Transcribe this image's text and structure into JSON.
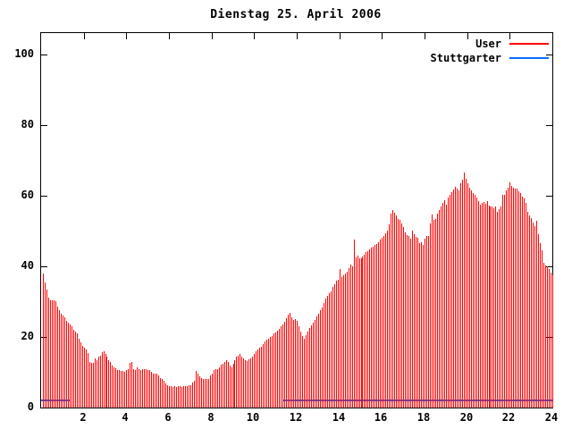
{
  "chart_data": {
    "type": "bar",
    "title": "Dienstag 25. April 2006",
    "xlabel": "",
    "ylabel": "",
    "xlim": [
      0,
      24
    ],
    "ylim": [
      0,
      106
    ],
    "x_ticks": [
      2,
      4,
      6,
      8,
      10,
      12,
      14,
      16,
      18,
      20,
      22,
      24
    ],
    "y_ticks": [
      0,
      20,
      40,
      60,
      80,
      100
    ],
    "grid": false,
    "legend_position": "top-right-inside",
    "background_color": "#ffffff",
    "axis_color": "#000000",
    "series": [
      {
        "name": "User",
        "color": "#ff0000",
        "style": "impulses",
        "interval_minutes": 5,
        "values": [
          38,
          35.5,
          33.5,
          31,
          30.3,
          30.3,
          30.3,
          30,
          28.5,
          27.5,
          26.5,
          26,
          25.5,
          24.5,
          24,
          23.5,
          23,
          22,
          21.5,
          21,
          19.5,
          18.5,
          17.5,
          17,
          16.5,
          15.5,
          13,
          12.6,
          12.6,
          14,
          13.5,
          14.3,
          14.7,
          15.6,
          16,
          15.1,
          14.3,
          13.5,
          13,
          11.8,
          11.5,
          11.1,
          10.7,
          10.7,
          10.3,
          10.3,
          10.1,
          10.5,
          10.9,
          12.6,
          13,
          10.9,
          10.5,
          11.4,
          10.9,
          10.5,
          10.8,
          10.8,
          10.8,
          10.7,
          10.5,
          10.1,
          9.7,
          9.6,
          9.5,
          9,
          8.4,
          8,
          7.6,
          6.8,
          6.2,
          6,
          6,
          5.8,
          6,
          5.8,
          6,
          6,
          5.8,
          6,
          6,
          6,
          6.2,
          6.3,
          7.1,
          7.6,
          10.3,
          9.7,
          8.9,
          8.4,
          8.2,
          8,
          8,
          8.2,
          9,
          9.5,
          10.5,
          10.9,
          11,
          11.5,
          12.2,
          12.5,
          12.8,
          13.5,
          12.8,
          12,
          11.5,
          12.5,
          13.5,
          14.3,
          14.6,
          15.1,
          14.5,
          14,
          13.4,
          13.2,
          13.6,
          14,
          14.5,
          15.3,
          16,
          16.5,
          17,
          17.3,
          18,
          18.7,
          19.3,
          19.6,
          20,
          20.3,
          21,
          21.3,
          21.7,
          22.3,
          23,
          23.6,
          24.4,
          25.2,
          26.2,
          26.9,
          25.5,
          24.8,
          25,
          24.5,
          23,
          21.5,
          20.3,
          19.4,
          20.5,
          21.6,
          22.5,
          23.3,
          24,
          24.8,
          25.8,
          26.5,
          27.5,
          28.3,
          29.5,
          30.8,
          31.7,
          32.5,
          33,
          34.2,
          35,
          35.8,
          36.3,
          39.3,
          37,
          37.5,
          38,
          38.5,
          39.5,
          40.5,
          40,
          47.6,
          42.5,
          42.9,
          42.3,
          42.2,
          42.8,
          43.3,
          43.9,
          44.3,
          44.7,
          45.2,
          45.6,
          46,
          46.4,
          46.8,
          47.5,
          48,
          48.5,
          49.3,
          50.2,
          51.9,
          54.8,
          56,
          55.2,
          54.3,
          53.5,
          53,
          52.2,
          51,
          49.7,
          48.8,
          48.6,
          47.7,
          50,
          49,
          48.4,
          48.1,
          46.5,
          46.8,
          46,
          47.7,
          48.6,
          48.5,
          52,
          54.7,
          53,
          53.5,
          55,
          56,
          57,
          58,
          58.8,
          57.5,
          59.5,
          60.3,
          61,
          61.8,
          62.5,
          62,
          61.5,
          63.5,
          64.5,
          66.5,
          64.8,
          63.5,
          62.3,
          61.5,
          60.8,
          60.2,
          59.5,
          58.5,
          57.5,
          58,
          58.3,
          57.8,
          58.5,
          57.3,
          57,
          56.8,
          56.5,
          57,
          55.5,
          56.2,
          57,
          60.1,
          60.3,
          61.4,
          62.3,
          63.7,
          62.8,
          62.3,
          62,
          62.1,
          61.3,
          60.6,
          59.6,
          59.2,
          57.9,
          55.4,
          54.5,
          53.7,
          52.4,
          51.3,
          52.9,
          49.2,
          46.5,
          44.6,
          40.9,
          40.2,
          40,
          39.2,
          38.3,
          37.5
        ]
      },
      {
        "name": "Stuttgarter",
        "color": "#0a6cff",
        "style": "line",
        "segments": [
          {
            "x_from": 0,
            "x_to": 1.35,
            "value": 2
          },
          {
            "x_from": 11.35,
            "x_to": 24,
            "value": 2
          }
        ]
      }
    ]
  }
}
